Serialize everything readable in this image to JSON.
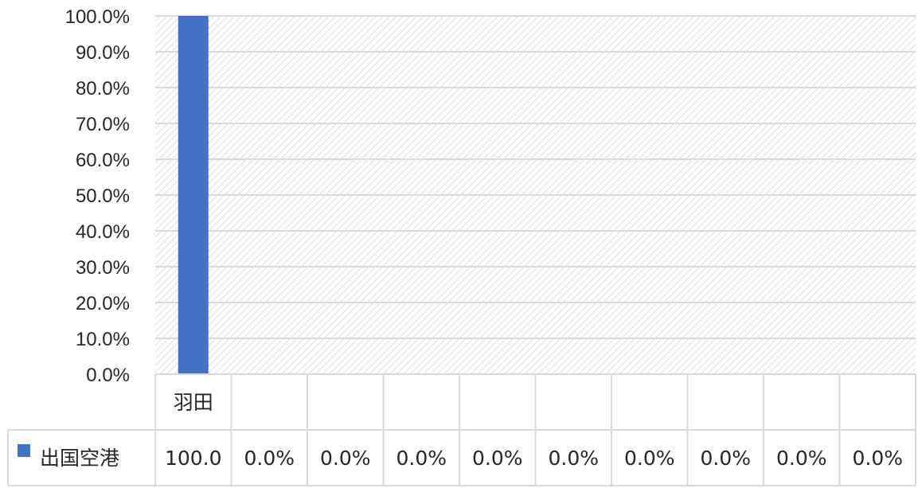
{
  "chart_data": {
    "type": "bar",
    "title": "",
    "xlabel": "",
    "ylabel": "",
    "ylim": [
      0,
      100
    ],
    "y_ticks": [
      "0.0%",
      "10.0%",
      "20.0%",
      "30.0%",
      "40.0%",
      "50.0%",
      "60.0%",
      "70.0%",
      "80.0%",
      "90.0%",
      "100.0%"
    ],
    "grid": true,
    "categories": [
      "羽田",
      "",
      "",
      "",
      "",
      "",
      "",
      "",
      "",
      ""
    ],
    "series": [
      {
        "name": "出国空港",
        "color": "#4472c4",
        "values": [
          100,
          0,
          0,
          0,
          0,
          0,
          0,
          0,
          0,
          0
        ],
        "value_labels": [
          "100.0",
          "0.0%",
          "0.0%",
          "0.0%",
          "0.0%",
          "0.0%",
          "0.0%",
          "0.0%",
          "0.0%",
          "0.0%"
        ]
      }
    ],
    "legend_placement": "data-table",
    "background_pattern": "diagonal-hatch"
  }
}
